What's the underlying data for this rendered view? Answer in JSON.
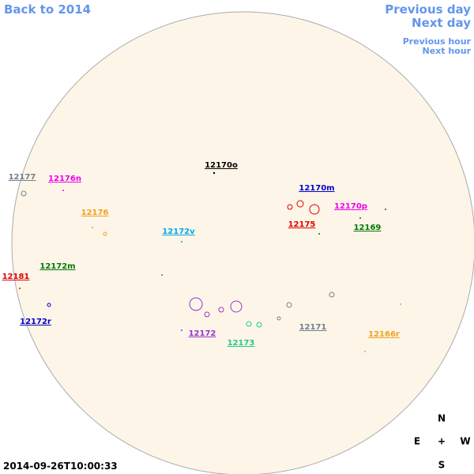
{
  "navigation": {
    "back": "Back to 2014",
    "previous_day": "Previous day",
    "next_day": "Next day",
    "previous_hour": "Previous hour",
    "next_hour": "Next hour"
  },
  "regions": [
    {
      "label": "12177",
      "color": "#708090"
    },
    {
      "label": "12176n",
      "color": "#ee00ee"
    },
    {
      "label": "12176",
      "color": "#f0a020"
    },
    {
      "label": "12170o",
      "color": "#000000"
    },
    {
      "label": "12170m",
      "color": "#0000cc"
    },
    {
      "label": "12175",
      "color": "#dd0000"
    },
    {
      "label": "12170p",
      "color": "#ee00ee"
    },
    {
      "label": "12169",
      "color": "#007700"
    },
    {
      "label": "12172v",
      "color": "#00aaee"
    },
    {
      "label": "12172m",
      "color": "#007700"
    },
    {
      "label": "12181",
      "color": "#dd0000"
    },
    {
      "label": "12172r",
      "color": "#0000cc"
    },
    {
      "label": "12172",
      "color": "#9933cc"
    },
    {
      "label": "12173",
      "color": "#22cc88"
    },
    {
      "label": "12171",
      "color": "#708090"
    },
    {
      "label": "12166r",
      "color": "#f0a020"
    }
  ],
  "timestamp": "2014-09-26T10:00:33",
  "compass": {
    "north": "N",
    "east": "E",
    "center": "+",
    "west": "W",
    "south": "S"
  }
}
